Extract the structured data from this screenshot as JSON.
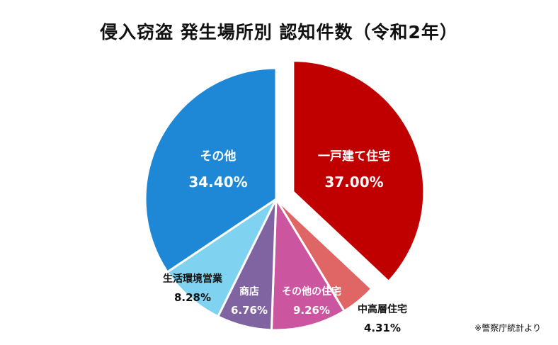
{
  "title": "侵入窃盗 発生場所別 認知件数（令和2年）",
  "source_note": "※警察庁統計より",
  "chart_data": {
    "type": "pie",
    "title": "侵入窃盗 発生場所別 認知件数（令和2年）",
    "unit": "%",
    "slices": [
      {
        "label": "一戸建て住宅",
        "value": 37.0,
        "value_label": "37.00%",
        "color": "#c00000",
        "exploded": true,
        "label_color": "#ffffff"
      },
      {
        "label": "中高層住宅",
        "value": 4.31,
        "value_label": "4.31%",
        "color": "#e06666",
        "exploded": false,
        "label_color": "#111111"
      },
      {
        "label": "その他の住宅",
        "value": 9.26,
        "value_label": "9.26%",
        "color": "#cc55a0",
        "exploded": false,
        "label_color": "#ffffff"
      },
      {
        "label": "商店",
        "value": 6.76,
        "value_label": "6.76%",
        "color": "#8064a2",
        "exploded": false,
        "label_color": "#ffffff"
      },
      {
        "label": "生活環境営業",
        "value": 8.28,
        "value_label": "8.28%",
        "color": "#7fd3f0",
        "exploded": false,
        "label_color": "#111111"
      },
      {
        "label": "その他",
        "value": 34.4,
        "value_label": "34.40%",
        "color": "#1e88d6",
        "exploded": false,
        "label_color": "#ffffff"
      }
    ]
  }
}
